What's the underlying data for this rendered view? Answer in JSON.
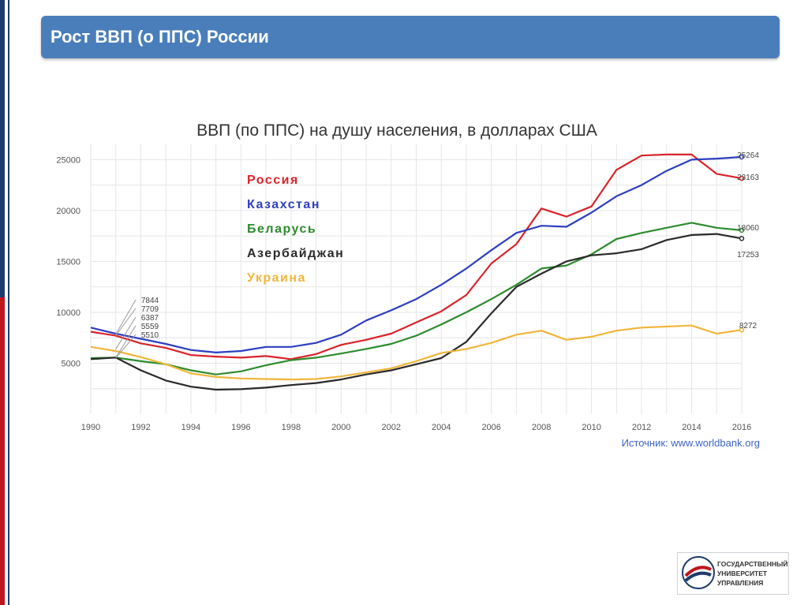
{
  "slide": {
    "title": "Рост ВВП (о ППС) России"
  },
  "logo": {
    "lines": [
      "ГОСУДАРСТВЕННЫЙ",
      "УНИВЕРСИТЕТ",
      "УПРАВЛЕНИЯ"
    ]
  },
  "chart_data": {
    "type": "line",
    "title": "ВВП (по ППС) на душу населения, в долларах США",
    "source": "Источник: www.worldbank.org",
    "xlabel": "",
    "ylabel": "",
    "xlim": [
      1990,
      2016
    ],
    "ylim": [
      0,
      26500
    ],
    "x_ticks": [
      1990,
      1992,
      1994,
      1996,
      1998,
      2000,
      2002,
      2004,
      2006,
      2008,
      2010,
      2012,
      2014,
      2016
    ],
    "y_ticks": [
      5000,
      10000,
      15000,
      20000,
      25000
    ],
    "grid": true,
    "legend_position": "top-left",
    "x": [
      1990,
      1991,
      1992,
      1993,
      1994,
      1995,
      1996,
      1997,
      1998,
      1999,
      2000,
      2001,
      2002,
      2003,
      2004,
      2005,
      2006,
      2007,
      2008,
      2009,
      2010,
      2011,
      2012,
      2013,
      2014,
      2015,
      2016
    ],
    "series": [
      {
        "name": "Россия",
        "color": "#d9232a",
        "values": [
          8100,
          7700,
          6950,
          6500,
          5800,
          5650,
          5550,
          5700,
          5400,
          5900,
          6800,
          7300,
          7900,
          9000,
          10100,
          11700,
          14800,
          16700,
          20200,
          19400,
          20400,
          24000,
          25400,
          25500,
          25500,
          23600,
          23163
        ]
      },
      {
        "name": "Казахстан",
        "color": "#2e3fbf",
        "values": [
          8500,
          7900,
          7400,
          6900,
          6300,
          6050,
          6200,
          6600,
          6600,
          7000,
          7800,
          9200,
          10200,
          11300,
          12700,
          14300,
          16100,
          17800,
          18500,
          18400,
          19800,
          21400,
          22500,
          23900,
          25000,
          25100,
          25264
        ]
      },
      {
        "name": "Беларусь",
        "color": "#2e8b2e",
        "values": [
          5500,
          5550,
          5200,
          4900,
          4300,
          3900,
          4200,
          4800,
          5300,
          5550,
          5950,
          6400,
          6900,
          7700,
          8800,
          10000,
          11300,
          12700,
          14300,
          14600,
          15700,
          17200,
          17800,
          18300,
          18800,
          18300,
          18060
        ]
      },
      {
        "name": "Азербайджан",
        "color": "#2a2a2a",
        "values": [
          5400,
          5559,
          4300,
          3300,
          2700,
          2400,
          2450,
          2600,
          2850,
          3050,
          3400,
          3900,
          4300,
          4900,
          5500,
          7100,
          9900,
          12500,
          13800,
          15000,
          15600,
          15800,
          16200,
          17100,
          17600,
          17700,
          17253
        ]
      },
      {
        "name": "Украина",
        "color": "#f0b63a",
        "values": [
          6600,
          6200,
          5600,
          4900,
          4000,
          3650,
          3500,
          3450,
          3400,
          3450,
          3700,
          4100,
          4500,
          5200,
          6000,
          6400,
          7000,
          7800,
          8200,
          7300,
          7600,
          8200,
          8500,
          8600,
          8700,
          7900,
          8272
        ]
      }
    ],
    "start_labels": [
      "7844",
      "7709",
      "6387",
      "5559",
      "5510"
    ],
    "end_labels": [
      {
        "series": "Казахстан",
        "text": "25264"
      },
      {
        "series": "Россия",
        "text": "23163"
      },
      {
        "series": "Беларусь",
        "text": "18060"
      },
      {
        "series": "Азербайджан",
        "text": "17253"
      },
      {
        "series": "Украина",
        "text": "8272"
      }
    ]
  }
}
